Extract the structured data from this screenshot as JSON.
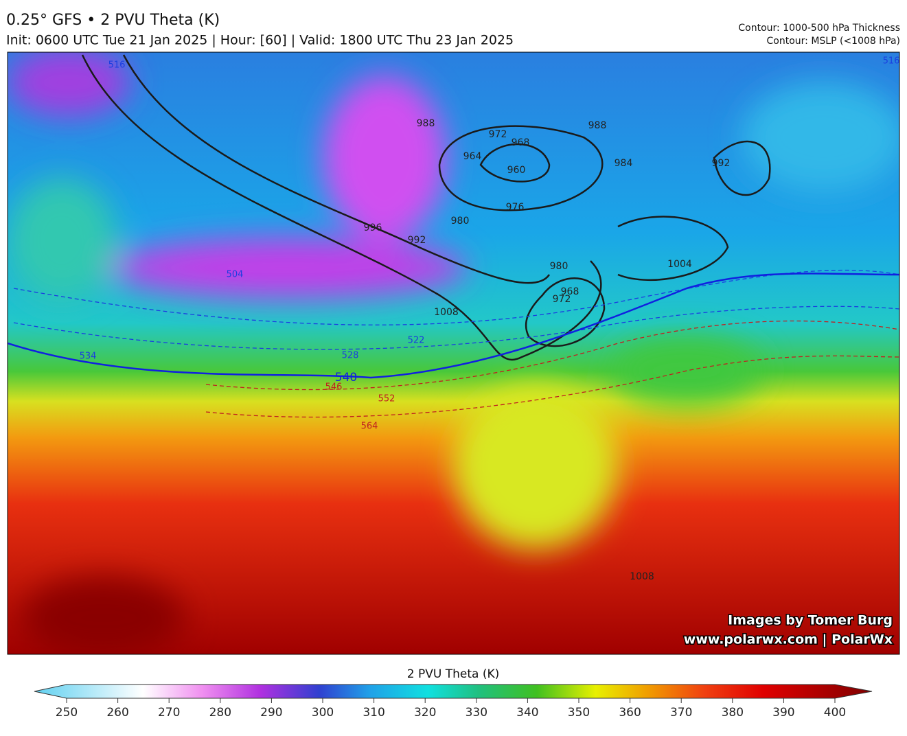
{
  "header": {
    "title": "0.25° GFS • 2 PVU Theta (K)",
    "subtitle": "Init: 0600 UTC Tue 21 Jan 2025 | Hour: [60] | Valid: 1800 UTC Thu 23 Jan 2025",
    "contours": [
      "Contour: 1000-500 hPa Thickness",
      "Contour: MSLP (<1008 hPa)"
    ]
  },
  "map": {
    "credits": [
      "Images by Tomer Burg",
      "www.polarwx.com | PolarWx"
    ],
    "mslp_labels": [
      988,
      972,
      968,
      964,
      960,
      976,
      980,
      984,
      988,
      992,
      996,
      992,
      980,
      1004,
      1008,
      972,
      968,
      1008
    ],
    "thickness_labels": [
      516,
      504,
      534,
      528,
      522,
      540,
      546,
      552,
      564,
      516
    ]
  },
  "colorbar": {
    "title": "2 PVU Theta (K)",
    "range": [
      250,
      400
    ],
    "ticks": [
      250,
      260,
      270,
      280,
      290,
      300,
      310,
      320,
      330,
      340,
      350,
      360,
      370,
      380,
      390,
      400
    ]
  }
}
